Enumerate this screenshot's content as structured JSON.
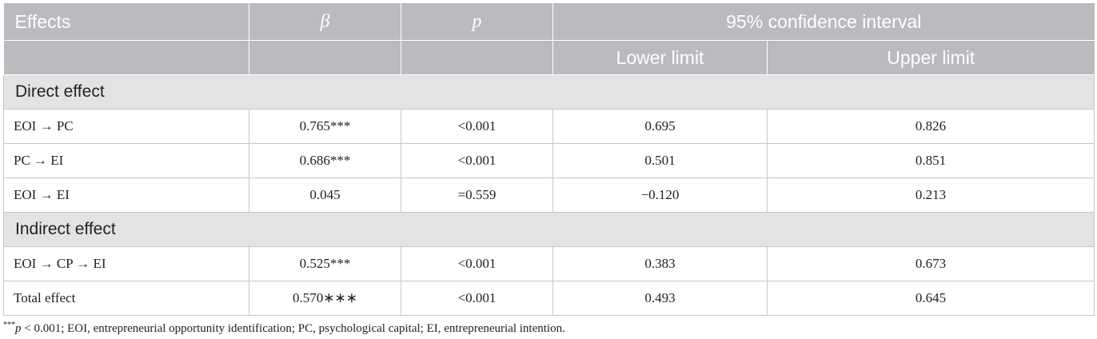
{
  "table": {
    "headers": {
      "effects": "Effects",
      "beta": "β",
      "p": "p",
      "ci": "95% confidence interval",
      "lower": "Lower limit",
      "upper": "Upper limit"
    },
    "sections": [
      {
        "title": "Direct effect",
        "rows": [
          {
            "effect": "EOI →  PC",
            "beta": "0.765***",
            "p": "<0.001",
            "lower": "0.695",
            "upper": "0.826"
          },
          {
            "effect": "PC →  EI",
            "beta": "0.686***",
            "p": "<0.001",
            "lower": "0.501",
            "upper": "0.851"
          },
          {
            "effect": "EOI →  EI",
            "beta": "0.045",
            "p": "=0.559",
            "lower": "−0.120",
            "upper": "0.213"
          }
        ]
      },
      {
        "title": "Indirect effect",
        "rows": [
          {
            "effect": "EOI →  CP →  EI",
            "beta": "0.525***",
            "p": "<0.001",
            "lower": "0.383",
            "upper": "0.673"
          },
          {
            "effect": "Total effect",
            "beta": "0.570∗∗∗",
            "p": "<0.001",
            "lower": "0.493",
            "upper": "0.645"
          }
        ]
      }
    ]
  },
  "footnote": {
    "sup": "***",
    "p_label": "p",
    "text": " < 0.001; EOI, entrepreneurial opportunity identification; PC, psychological capital; EI, entrepreneurial intention."
  }
}
